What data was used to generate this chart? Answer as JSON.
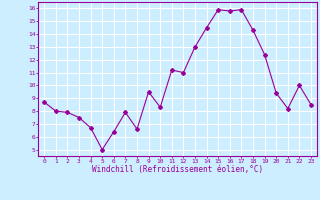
{
  "x": [
    0,
    1,
    2,
    3,
    4,
    5,
    6,
    7,
    8,
    9,
    10,
    11,
    12,
    13,
    14,
    15,
    16,
    17,
    18,
    19,
    20,
    21,
    22,
    23
  ],
  "y": [
    8.7,
    8.0,
    7.9,
    7.5,
    6.7,
    5.0,
    6.4,
    7.9,
    6.6,
    9.5,
    8.3,
    11.2,
    11.0,
    13.0,
    14.5,
    15.9,
    15.8,
    15.9,
    14.3,
    12.4,
    9.4,
    8.2,
    10.0,
    8.5
  ],
  "xlim": [
    -0.5,
    23.5
  ],
  "ylim": [
    4.5,
    16.5
  ],
  "yticks": [
    5,
    6,
    7,
    8,
    9,
    10,
    11,
    12,
    13,
    14,
    15,
    16
  ],
  "xticks": [
    0,
    1,
    2,
    3,
    4,
    5,
    6,
    7,
    8,
    9,
    10,
    11,
    12,
    13,
    14,
    15,
    16,
    17,
    18,
    19,
    20,
    21,
    22,
    23
  ],
  "xlabel": "Windchill (Refroidissement éolien,°C)",
  "line_color": "#990099",
  "marker": "D",
  "marker_size": 2.0,
  "bg_color": "#cceeff",
  "grid_color": "#ffffff",
  "tick_label_color": "#990099",
  "xlabel_color": "#990099",
  "figsize": [
    3.2,
    2.0
  ],
  "dpi": 100
}
